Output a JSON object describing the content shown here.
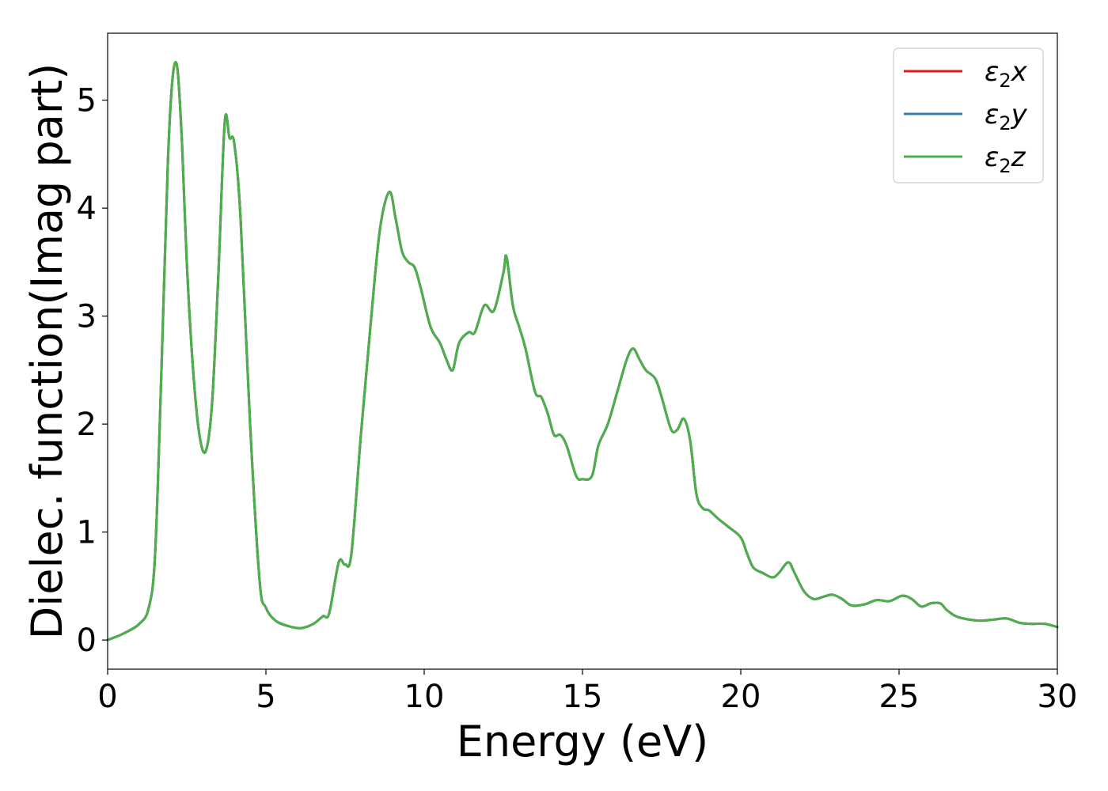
{
  "chart_data": {
    "type": "line",
    "xlabel": "Energy (eV)",
    "ylabel": "Dielec. function(Imag part)",
    "xlim": [
      0,
      30
    ],
    "ylim": [
      -0.27,
      5.62
    ],
    "xticks": [
      0,
      5,
      10,
      15,
      20,
      25,
      30
    ],
    "yticks": [
      0,
      1,
      2,
      3,
      4,
      5
    ],
    "grid": false,
    "legend_position": "top-right",
    "x": [
      0,
      0.5,
      1.0,
      1.3,
      1.5,
      1.7,
      1.9,
      2.05,
      2.2,
      2.35,
      2.5,
      2.7,
      2.9,
      3.1,
      3.3,
      3.5,
      3.7,
      3.85,
      4.0,
      4.2,
      4.5,
      4.8,
      5.0,
      5.3,
      5.7,
      6.1,
      6.5,
      6.8,
      7.0,
      7.3,
      7.5,
      7.7,
      8.0,
      8.3,
      8.6,
      8.9,
      9.1,
      9.3,
      9.5,
      9.7,
      9.9,
      10.2,
      10.5,
      10.7,
      10.9,
      11.1,
      11.4,
      11.6,
      11.9,
      12.2,
      12.5,
      12.6,
      12.8,
      13.0,
      13.2,
      13.5,
      13.7,
      13.9,
      14.1,
      14.3,
      14.5,
      14.8,
      15.0,
      15.3,
      15.5,
      15.8,
      16.1,
      16.4,
      16.6,
      16.8,
      17.0,
      17.3,
      17.5,
      17.8,
      18.0,
      18.2,
      18.4,
      18.6,
      18.8,
      19.0,
      19.3,
      19.6,
      20.0,
      20.2,
      20.4,
      20.7,
      21.0,
      21.2,
      21.5,
      21.7,
      22.0,
      22.3,
      22.6,
      22.9,
      23.2,
      23.5,
      23.9,
      24.3,
      24.7,
      25.1,
      25.4,
      25.7,
      26.0,
      26.3,
      26.5,
      26.8,
      27.2,
      27.6,
      28.0,
      28.4,
      28.8,
      29.2,
      29.6,
      30.0
    ],
    "series": [
      {
        "name": "ε2x",
        "color": "#e41a1c",
        "values": [
          0.0,
          0.06,
          0.15,
          0.3,
          0.8,
          2.5,
          4.4,
          5.2,
          5.3,
          4.6,
          3.5,
          2.5,
          1.9,
          1.75,
          2.2,
          3.4,
          4.8,
          4.65,
          4.6,
          3.9,
          2.0,
          0.55,
          0.3,
          0.18,
          0.13,
          0.11,
          0.15,
          0.22,
          0.25,
          0.72,
          0.7,
          0.8,
          1.9,
          2.9,
          3.8,
          4.15,
          3.9,
          3.6,
          3.5,
          3.45,
          3.25,
          2.9,
          2.75,
          2.6,
          2.5,
          2.75,
          2.85,
          2.85,
          3.1,
          3.05,
          3.4,
          3.55,
          3.1,
          2.9,
          2.7,
          2.3,
          2.25,
          2.1,
          1.9,
          1.9,
          1.8,
          1.52,
          1.49,
          1.52,
          1.8,
          2.0,
          2.3,
          2.6,
          2.7,
          2.6,
          2.5,
          2.42,
          2.25,
          1.95,
          1.95,
          2.05,
          1.85,
          1.35,
          1.22,
          1.2,
          1.12,
          1.05,
          0.95,
          0.8,
          0.67,
          0.62,
          0.58,
          0.62,
          0.72,
          0.62,
          0.45,
          0.38,
          0.4,
          0.42,
          0.38,
          0.32,
          0.33,
          0.37,
          0.36,
          0.41,
          0.38,
          0.31,
          0.34,
          0.34,
          0.28,
          0.22,
          0.19,
          0.18,
          0.19,
          0.2,
          0.16,
          0.15,
          0.15,
          0.12
        ]
      },
      {
        "name": "ε2y",
        "color": "#377eb8",
        "values": [
          0.0,
          0.06,
          0.15,
          0.3,
          0.8,
          2.5,
          4.4,
          5.2,
          5.3,
          4.6,
          3.5,
          2.5,
          1.9,
          1.75,
          2.2,
          3.4,
          4.8,
          4.65,
          4.6,
          3.9,
          2.0,
          0.55,
          0.3,
          0.18,
          0.13,
          0.11,
          0.15,
          0.22,
          0.25,
          0.72,
          0.7,
          0.8,
          1.9,
          2.9,
          3.8,
          4.15,
          3.9,
          3.6,
          3.5,
          3.45,
          3.25,
          2.9,
          2.75,
          2.6,
          2.5,
          2.75,
          2.85,
          2.85,
          3.1,
          3.05,
          3.4,
          3.55,
          3.1,
          2.9,
          2.7,
          2.3,
          2.25,
          2.1,
          1.9,
          1.9,
          1.8,
          1.52,
          1.49,
          1.52,
          1.8,
          2.0,
          2.3,
          2.6,
          2.7,
          2.6,
          2.5,
          2.42,
          2.25,
          1.95,
          1.95,
          2.05,
          1.85,
          1.35,
          1.22,
          1.2,
          1.12,
          1.05,
          0.95,
          0.8,
          0.67,
          0.62,
          0.58,
          0.62,
          0.72,
          0.62,
          0.45,
          0.38,
          0.4,
          0.42,
          0.38,
          0.32,
          0.33,
          0.37,
          0.36,
          0.41,
          0.38,
          0.31,
          0.34,
          0.34,
          0.28,
          0.22,
          0.19,
          0.18,
          0.19,
          0.2,
          0.16,
          0.15,
          0.15,
          0.12
        ]
      },
      {
        "name": "ε2z",
        "color": "#4daf4a",
        "values": [
          0.0,
          0.06,
          0.15,
          0.3,
          0.8,
          2.5,
          4.4,
          5.2,
          5.3,
          4.6,
          3.5,
          2.5,
          1.9,
          1.75,
          2.2,
          3.4,
          4.8,
          4.65,
          4.6,
          3.9,
          2.0,
          0.55,
          0.3,
          0.18,
          0.13,
          0.11,
          0.15,
          0.22,
          0.25,
          0.72,
          0.7,
          0.8,
          1.9,
          2.9,
          3.8,
          4.15,
          3.9,
          3.6,
          3.5,
          3.45,
          3.25,
          2.9,
          2.75,
          2.6,
          2.5,
          2.75,
          2.85,
          2.85,
          3.1,
          3.05,
          3.4,
          3.55,
          3.1,
          2.9,
          2.7,
          2.3,
          2.25,
          2.1,
          1.9,
          1.9,
          1.8,
          1.52,
          1.49,
          1.52,
          1.8,
          2.0,
          2.3,
          2.6,
          2.7,
          2.6,
          2.5,
          2.42,
          2.25,
          1.95,
          1.95,
          2.05,
          1.85,
          1.35,
          1.22,
          1.2,
          1.12,
          1.05,
          0.95,
          0.8,
          0.67,
          0.62,
          0.58,
          0.62,
          0.72,
          0.62,
          0.45,
          0.38,
          0.4,
          0.42,
          0.38,
          0.32,
          0.33,
          0.37,
          0.36,
          0.41,
          0.38,
          0.31,
          0.34,
          0.34,
          0.28,
          0.22,
          0.19,
          0.18,
          0.19,
          0.2,
          0.16,
          0.15,
          0.15,
          0.12
        ]
      }
    ],
    "legend": [
      {
        "symbol": "ε",
        "sub": "2",
        "axis": "x"
      },
      {
        "symbol": "ε",
        "sub": "2",
        "axis": "y"
      },
      {
        "symbol": "ε",
        "sub": "2",
        "axis": "z"
      }
    ]
  }
}
